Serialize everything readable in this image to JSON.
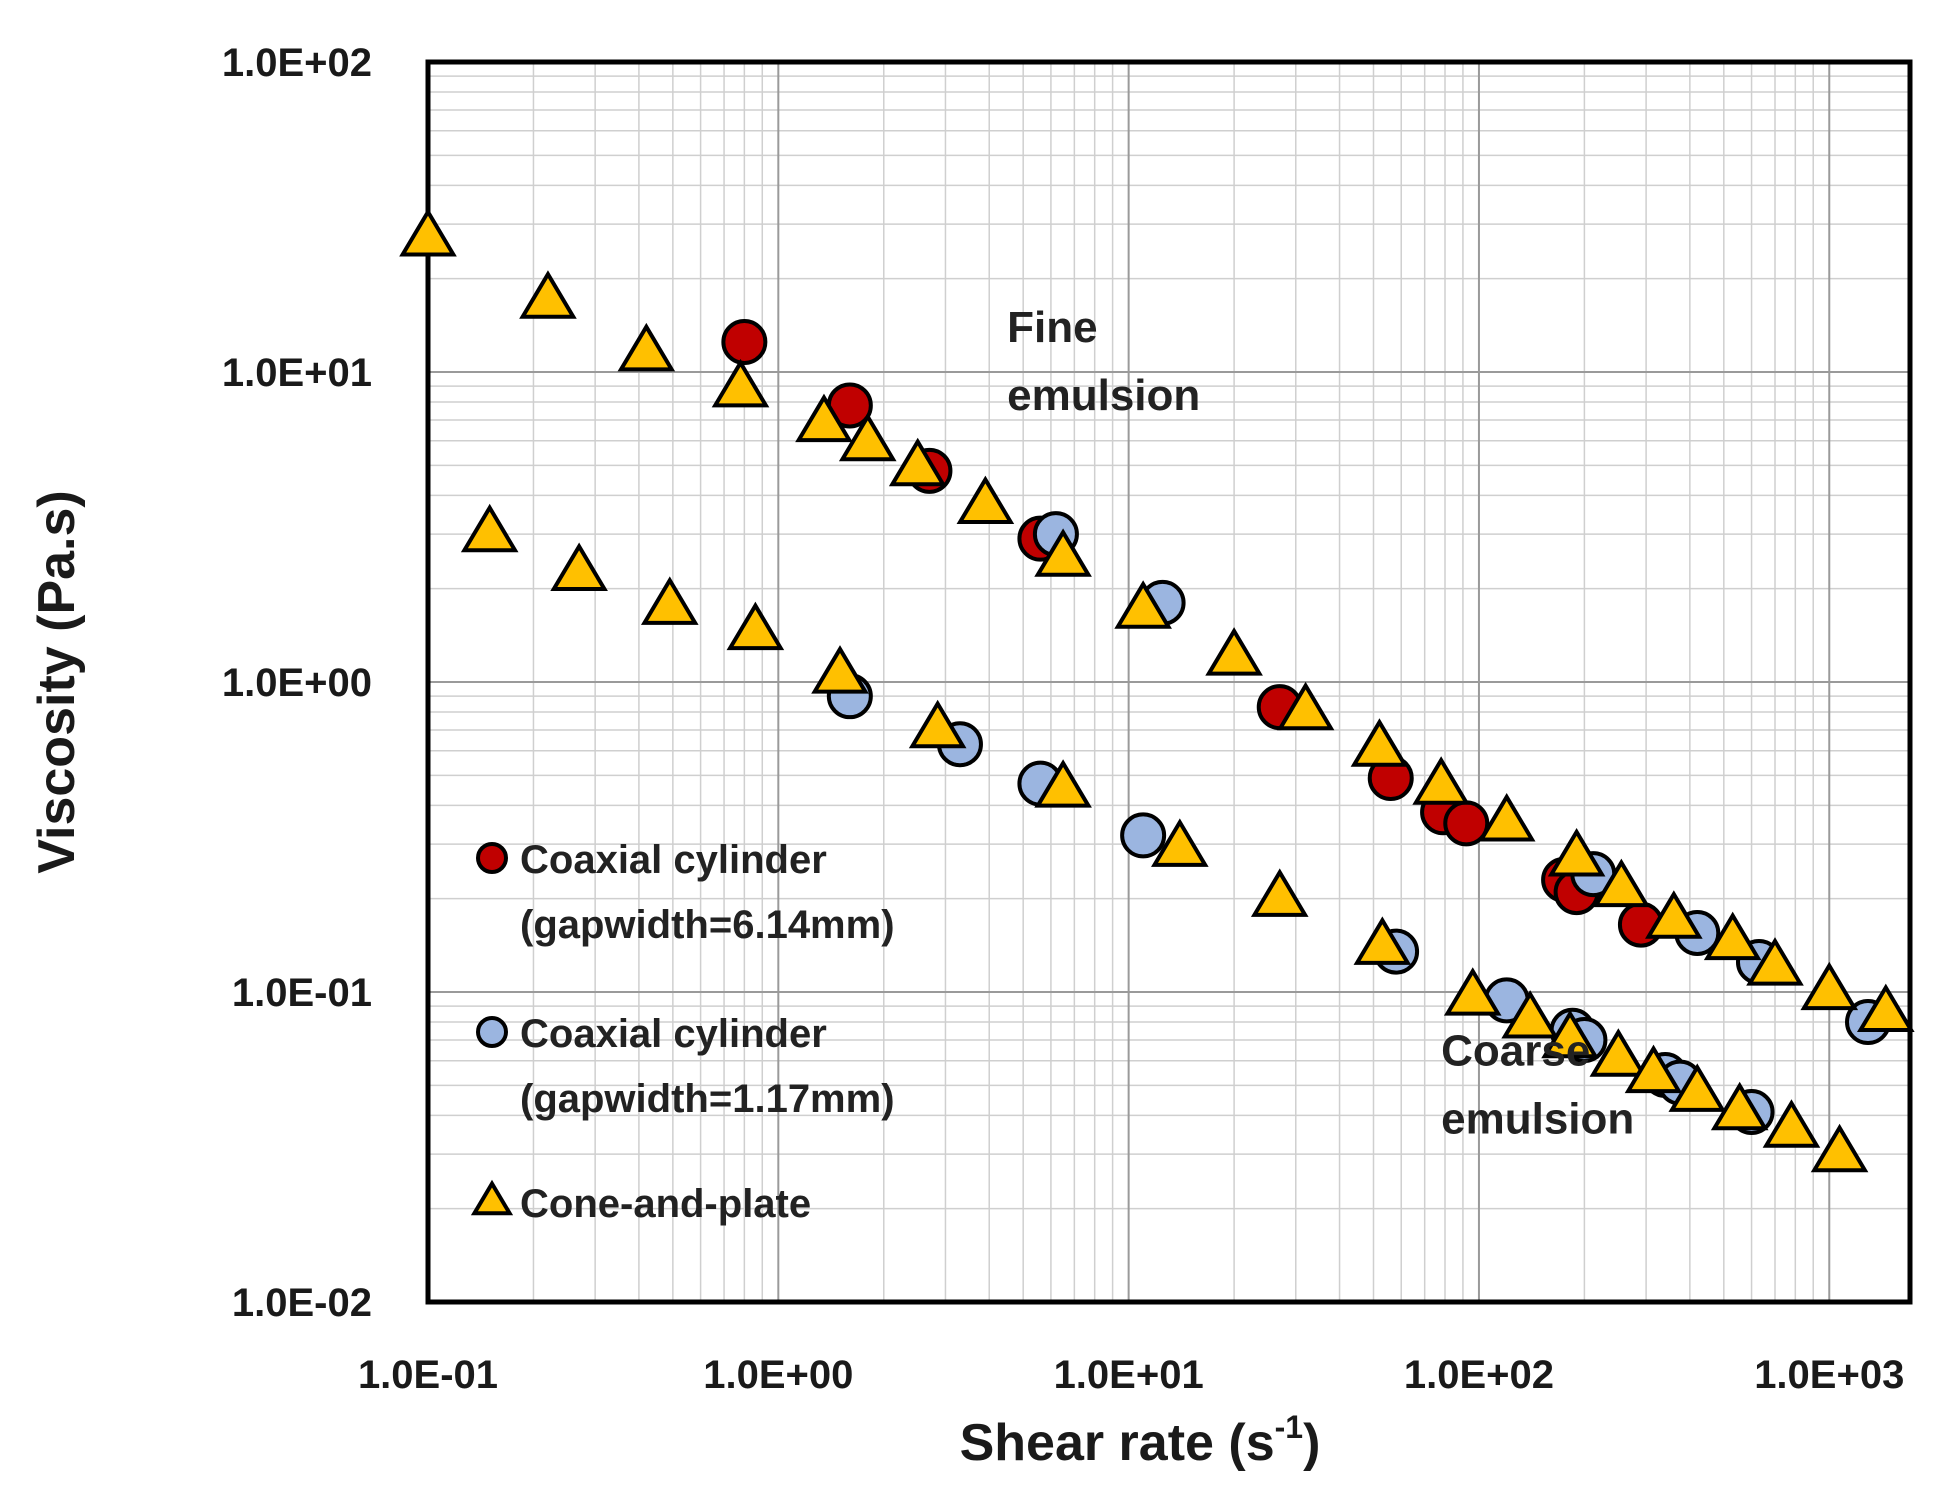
{
  "chart_data": {
    "type": "scatter",
    "xscale": "log",
    "yscale": "log",
    "xlim": [
      0.1,
      1700
    ],
    "ylim": [
      0.01,
      100
    ],
    "grid": true,
    "xlabel": "Shear rate (s",
    "xlabel_sup": "-1",
    "xlabel_end": ")",
    "ylabel": "Viscosity (Pa.s)",
    "xticks": [
      0.1,
      1,
      10,
      100,
      1000
    ],
    "xtick_labels": [
      "1.0E-01",
      "1.0E+00",
      "1.0E+01",
      "1.0E+02",
      "1.0E+03"
    ],
    "yticks": [
      0.01,
      0.1,
      1,
      10,
      100
    ],
    "ytick_labels": [
      "1.0E-02",
      "1.0E-01",
      "1.0E+00",
      "1.0E+01",
      "1.0E+02"
    ],
    "legend": {
      "placement": "bottom-left",
      "entries": [
        {
          "line1": "Coaxial cylinder",
          "line2": "(gapwidth=6.14mm)"
        },
        {
          "line1": "Coaxial cylinder",
          "line2": "(gapwidth=1.17mm)"
        },
        {
          "line1": "Cone-and-plate",
          "line2": ""
        }
      ]
    },
    "annotations": [
      {
        "line1": "Fine",
        "line2": "emulsion",
        "x": 4.5,
        "y": 12.5
      },
      {
        "line1": "Coarse",
        "line2": "emulsion",
        "x": 78,
        "y": 0.058
      }
    ],
    "series": [
      {
        "marker": "circle",
        "fill": "#c00000",
        "points": [
          [
            0.8,
            12.5
          ],
          [
            1.6,
            7.8
          ],
          [
            2.7,
            4.8
          ],
          [
            5.6,
            2.9
          ],
          [
            27,
            0.83
          ],
          [
            56,
            0.49
          ],
          [
            79,
            0.38
          ],
          [
            92,
            0.35
          ],
          [
            175,
            0.23
          ],
          [
            190,
            0.21
          ],
          [
            290,
            0.165
          ]
        ]
      },
      {
        "marker": "circle",
        "fill": "#9bb5e0",
        "points": [
          [
            6.2,
            3.0
          ],
          [
            12.5,
            1.8
          ],
          [
            212,
            0.24
          ],
          [
            420,
            0.155
          ],
          [
            630,
            0.125
          ],
          [
            1290,
            0.08
          ],
          [
            1.6,
            0.9
          ],
          [
            3.3,
            0.63
          ],
          [
            5.6,
            0.47
          ],
          [
            11,
            0.32
          ],
          [
            58,
            0.135
          ],
          [
            120,
            0.094
          ],
          [
            185,
            0.075
          ],
          [
            200,
            0.07
          ],
          [
            340,
            0.054
          ],
          [
            375,
            0.051
          ],
          [
            600,
            0.041
          ]
        ]
      },
      {
        "marker": "triangle",
        "fill": "#ffc000",
        "points": [
          [
            0.1,
            27
          ],
          [
            0.22,
            17
          ],
          [
            0.42,
            11.5
          ],
          [
            0.78,
            8.8
          ],
          [
            1.35,
            6.8
          ],
          [
            1.8,
            5.9
          ],
          [
            2.5,
            4.9
          ],
          [
            3.9,
            3.7
          ],
          [
            6.5,
            2.5
          ],
          [
            11,
            1.7
          ],
          [
            20,
            1.2
          ],
          [
            32,
            0.8
          ],
          [
            52,
            0.61
          ],
          [
            78,
            0.46
          ],
          [
            120,
            0.35
          ],
          [
            190,
            0.27
          ],
          [
            255,
            0.215
          ],
          [
            360,
            0.17
          ],
          [
            530,
            0.145
          ],
          [
            700,
            0.12
          ],
          [
            1000,
            0.1
          ],
          [
            1450,
            0.085
          ],
          [
            0.15,
            3.0
          ],
          [
            0.27,
            2.25
          ],
          [
            0.49,
            1.75
          ],
          [
            0.86,
            1.45
          ],
          [
            1.5,
            1.05
          ],
          [
            2.85,
            0.7
          ],
          [
            6.5,
            0.45
          ],
          [
            14,
            0.29
          ],
          [
            27,
            0.2
          ],
          [
            53,
            0.14
          ],
          [
            96,
            0.096
          ],
          [
            140,
            0.081
          ],
          [
            182,
            0.07
          ],
          [
            250,
            0.061
          ],
          [
            315,
            0.054
          ],
          [
            420,
            0.047
          ],
          [
            555,
            0.041
          ],
          [
            780,
            0.036
          ],
          [
            1070,
            0.03
          ]
        ]
      }
    ]
  }
}
